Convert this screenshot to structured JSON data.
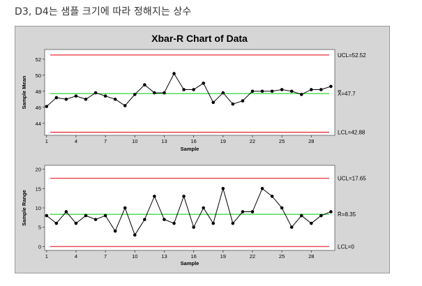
{
  "caption": "D3, D4는 샘플 크기에 따라 정해지는 상수",
  "footer_text": "",
  "colors": {
    "limit_line": "#e8414a",
    "center_line": "#3fd94a",
    "data_line": "#000000",
    "plot_bg": "#ffffff",
    "figure_bg": "#d6d6d6"
  },
  "chart_data": {
    "title": "Xbar-R Chart of Data",
    "charts": [
      {
        "type": "line",
        "ylabel": "Sample Mean",
        "xlabel": "Sample",
        "ylim": [
          42.5,
          53.2
        ],
        "yticks": [
          44,
          46,
          48,
          50,
          52
        ],
        "xticks": [
          1,
          4,
          7,
          10,
          13,
          16,
          19,
          22,
          25,
          28
        ],
        "x": [
          1,
          2,
          3,
          4,
          5,
          6,
          7,
          8,
          9,
          10,
          11,
          12,
          13,
          14,
          15,
          16,
          17,
          18,
          19,
          20,
          21,
          22,
          23,
          24,
          25,
          26,
          27,
          28,
          29,
          30
        ],
        "values": [
          46.1,
          47.2,
          47.0,
          47.4,
          47.0,
          47.8,
          47.4,
          47.0,
          46.2,
          47.6,
          48.8,
          47.8,
          47.8,
          50.2,
          48.2,
          48.2,
          49.0,
          46.6,
          47.8,
          46.4,
          46.8,
          48.0,
          48.0,
          48.0,
          48.2,
          48.0,
          47.6,
          48.2,
          48.2,
          48.6
        ],
        "limits": {
          "ucl": {
            "value": 52.52,
            "label": "UCL=52.52"
          },
          "center": {
            "value": 47.7,
            "label": "X̿=47.7"
          },
          "lcl": {
            "value": 42.88,
            "label": "LCL=42.88"
          }
        },
        "grid": false
      },
      {
        "type": "line",
        "ylabel": "Sample Range",
        "xlabel": "Sample",
        "ylim": [
          -1,
          21
        ],
        "yticks": [
          0,
          5,
          10,
          15,
          20
        ],
        "xticks": [
          1,
          4,
          7,
          10,
          13,
          16,
          19,
          22,
          25,
          28
        ],
        "x": [
          1,
          2,
          3,
          4,
          5,
          6,
          7,
          8,
          9,
          10,
          11,
          12,
          13,
          14,
          15,
          16,
          17,
          18,
          19,
          20,
          21,
          22,
          23,
          24,
          25,
          26,
          27,
          28,
          29,
          30
        ],
        "values": [
          8,
          6,
          9,
          6,
          8,
          7,
          8,
          4,
          10,
          3,
          7,
          13,
          7,
          6,
          13,
          5,
          10,
          6,
          15,
          6,
          9,
          9,
          15,
          13,
          10,
          5,
          8,
          6,
          8,
          9
        ],
        "limits": {
          "ucl": {
            "value": 17.65,
            "label": "UCL=17.65"
          },
          "center": {
            "value": 8.35,
            "label": "R̄=8.35"
          },
          "lcl": {
            "value": 0,
            "label": "LCL=0"
          }
        },
        "grid": false
      }
    ]
  }
}
